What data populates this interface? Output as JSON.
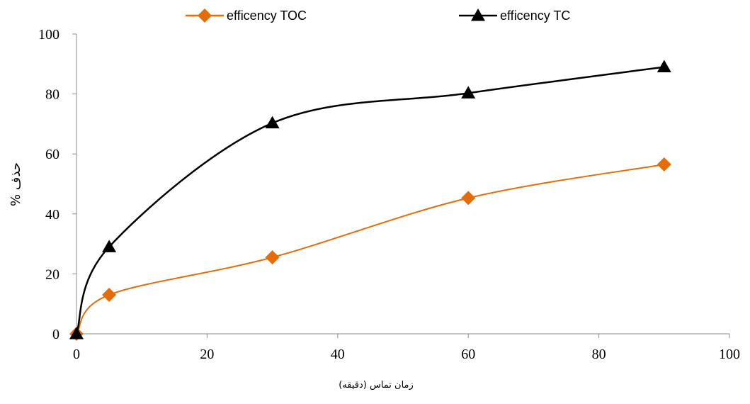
{
  "chart_data": {
    "type": "line",
    "title": "",
    "xlabel": "زمان تماس (دقیقه)",
    "ylabel": "حذف %",
    "xlim": [
      0,
      100
    ],
    "ylim": [
      0,
      100
    ],
    "xticks": [
      "0",
      "20",
      "40",
      "60",
      "80",
      "100"
    ],
    "yticks": [
      "0",
      "20",
      "40",
      "60",
      "80",
      "100"
    ],
    "grid": false,
    "legend": "top",
    "smooth": true,
    "series": [
      {
        "name": "efficency TOC",
        "color": "#E46C0A",
        "marker": "diamond",
        "x": [
          0,
          5,
          30,
          60,
          90
        ],
        "y": [
          0,
          13,
          25.5,
          45.3,
          56.5
        ]
      },
      {
        "name": "efficency TC",
        "color": "#000000",
        "marker": "triangle",
        "x": [
          0,
          5,
          30,
          60,
          90
        ],
        "y": [
          0,
          29,
          70.3,
          80.3,
          89
        ]
      }
    ]
  }
}
